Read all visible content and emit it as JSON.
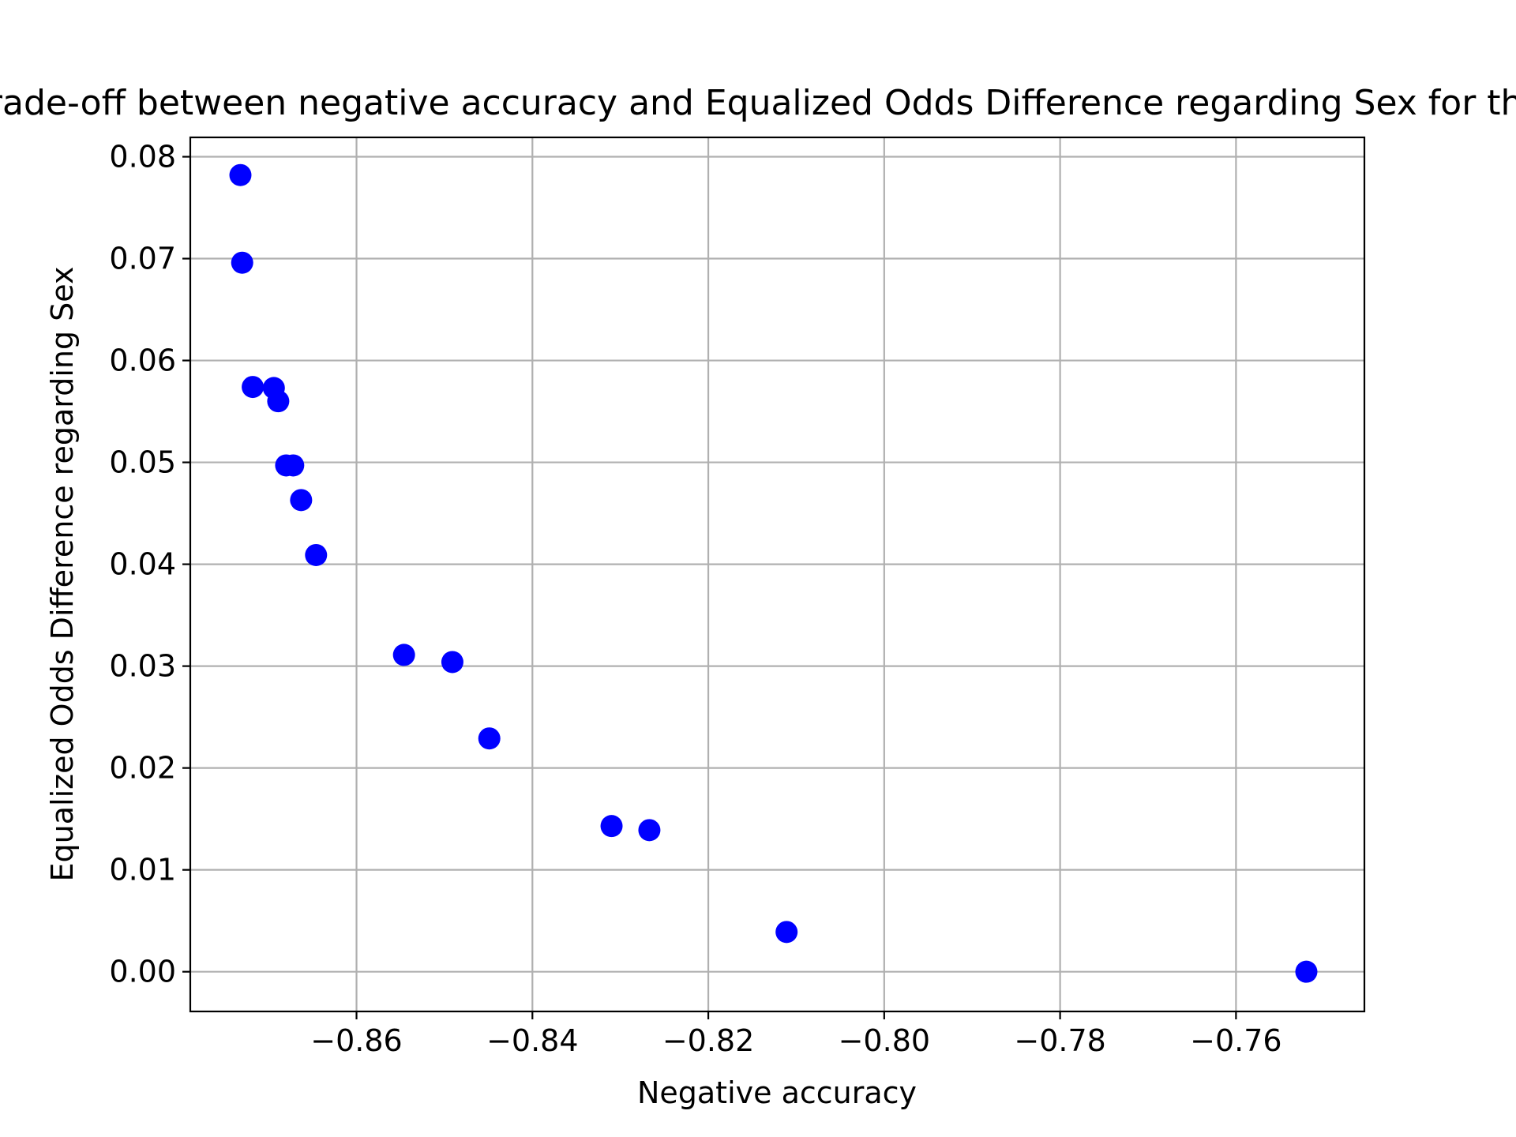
{
  "chart_data": {
    "type": "scatter",
    "title": "Trade-off between negative accuracy and Equalized Odds Difference regarding Sex for the",
    "xlabel": "Negative accuracy",
    "ylabel": "Equalized Odds Difference regarding Sex",
    "xlim": [
      -0.8789,
      -0.7454
    ],
    "ylim": [
      -0.0039,
      0.0819
    ],
    "grid": true,
    "xticks": [
      -0.86,
      -0.84,
      -0.82,
      -0.8,
      -0.78,
      -0.76
    ],
    "xtick_labels": [
      "−0.86",
      "−0.84",
      "−0.82",
      "−0.80",
      "−0.78",
      "−0.76"
    ],
    "yticks": [
      0.0,
      0.01,
      0.02,
      0.03,
      0.04,
      0.05,
      0.06,
      0.07,
      0.08
    ],
    "ytick_labels": [
      "0.00",
      "0.01",
      "0.02",
      "0.03",
      "0.04",
      "0.05",
      "0.06",
      "0.07",
      "0.08"
    ],
    "point_color": "#0000ff",
    "points": [
      {
        "x": -0.8732,
        "y": 0.0782
      },
      {
        "x": -0.873,
        "y": 0.0696
      },
      {
        "x": -0.8718,
        "y": 0.0574
      },
      {
        "x": -0.8694,
        "y": 0.0573
      },
      {
        "x": -0.8689,
        "y": 0.056
      },
      {
        "x": -0.868,
        "y": 0.0497
      },
      {
        "x": -0.8672,
        "y": 0.0497
      },
      {
        "x": -0.8663,
        "y": 0.0463
      },
      {
        "x": -0.8646,
        "y": 0.0409
      },
      {
        "x": -0.8546,
        "y": 0.0311
      },
      {
        "x": -0.8491,
        "y": 0.0304
      },
      {
        "x": -0.8449,
        "y": 0.0229
      },
      {
        "x": -0.831,
        "y": 0.0143
      },
      {
        "x": -0.8267,
        "y": 0.0139
      },
      {
        "x": -0.8111,
        "y": 0.0039
      },
      {
        "x": -0.752,
        "y": 0.0
      }
    ]
  }
}
